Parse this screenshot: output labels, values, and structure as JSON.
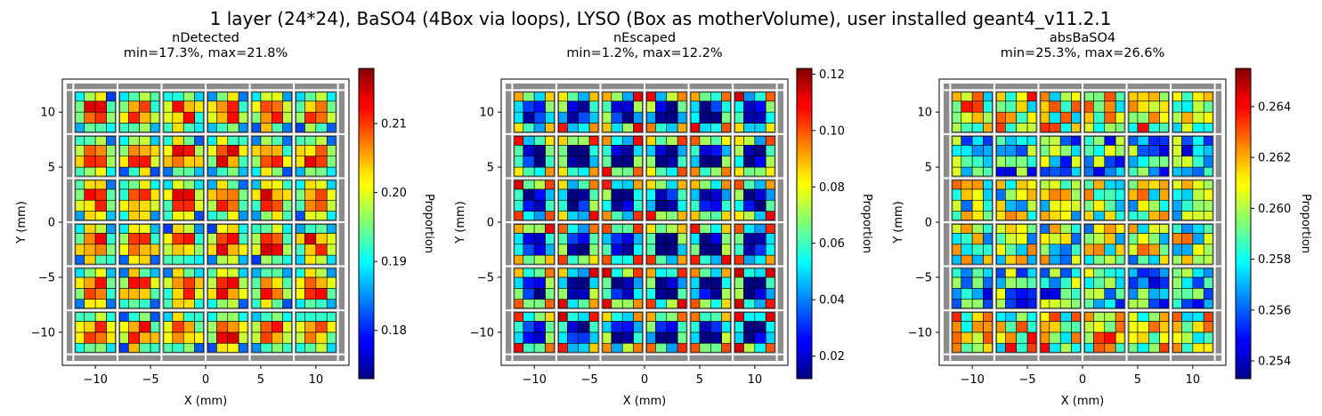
{
  "figure": {
    "suptitle": "1 layer (24*24), BaSO4 (4Box via loops), LYSO (Box as motherVolume), user installed geant4_v11.2.1"
  },
  "chart_data": [
    {
      "type": "heatmap",
      "title": "nDetected",
      "subtitle": "min=17.3%, max=21.8%",
      "xlabel": "X (mm)",
      "ylabel": "Y (mm)",
      "xlim": [
        -13,
        13
      ],
      "ylim": [
        -13,
        13
      ],
      "xticks": [
        -10,
        -5,
        0,
        5,
        10
      ],
      "yticks": [
        -10,
        -5,
        0,
        5,
        10
      ],
      "grid": [
        24,
        24
      ],
      "pattern": "detected",
      "colormap": "jet",
      "colorbar": {
        "label": "Proportion",
        "min": 0.173,
        "max": 0.218,
        "ticks": [
          "0.18",
          "0.19",
          "0.20",
          "0.21"
        ],
        "tick_values": [
          0.18,
          0.19,
          0.2,
          0.21
        ]
      }
    },
    {
      "type": "heatmap",
      "title": "nEscaped",
      "subtitle": "min=1.2%, max=12.2%",
      "xlabel": "X (mm)",
      "ylabel": "Y (mm)",
      "xlim": [
        -13,
        13
      ],
      "ylim": [
        -13,
        13
      ],
      "xticks": [
        -10,
        -5,
        0,
        5,
        10
      ],
      "yticks": [
        -10,
        -5,
        0,
        5,
        10
      ],
      "grid": [
        24,
        24
      ],
      "pattern": "escaped",
      "colormap": "jet",
      "colorbar": {
        "label": "Proportion",
        "min": 0.012,
        "max": 0.122,
        "ticks": [
          "0.02",
          "0.04",
          "0.06",
          "0.08",
          "0.10",
          "0.12"
        ],
        "tick_values": [
          0.02,
          0.04,
          0.06,
          0.08,
          0.1,
          0.12
        ]
      }
    },
    {
      "type": "heatmap",
      "title": "absBaSO4",
      "subtitle": "min=25.3%, max=26.6%",
      "xlabel": "X (mm)",
      "ylabel": "Y (mm)",
      "xlim": [
        -13,
        13
      ],
      "ylim": [
        -13,
        13
      ],
      "xticks": [
        -10,
        -5,
        0,
        5,
        10
      ],
      "yticks": [
        -10,
        -5,
        0,
        5,
        10
      ],
      "grid": [
        24,
        24
      ],
      "pattern": "absorbed",
      "colormap": "jet",
      "colorbar": {
        "label": "Proportion",
        "min": 0.2533,
        "max": 0.2655,
        "ticks": [
          "0.254",
          "0.256",
          "0.258",
          "0.260",
          "0.262",
          "0.264"
        ],
        "tick_values": [
          0.254,
          0.256,
          0.258,
          0.26,
          0.262,
          0.264
        ]
      }
    }
  ]
}
